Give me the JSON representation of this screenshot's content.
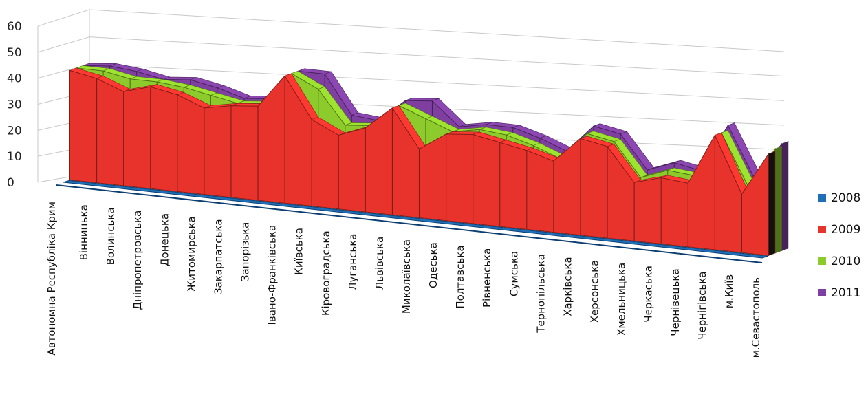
{
  "chart_data": {
    "type": "area",
    "chart_style": "3d-area",
    "ylim": [
      0,
      60
    ],
    "yticks": [
      0,
      10,
      20,
      30,
      40,
      50,
      60
    ],
    "grid": true,
    "legend_position": "right",
    "categories": [
      "Автономна Республіка Крим",
      "Вінницька",
      "Волинська",
      "Дніпропетровська",
      "Донецька",
      "Житомирська",
      "Закарпатська",
      "Запорізька",
      "Івано-Франківська",
      "Київська",
      "Кіровоградська",
      "Луганська",
      "Львівська",
      "Миколаївська",
      "Одеська",
      "Полтавська",
      "Рівненська",
      "Сумська",
      "Тернопільська",
      "Харківська",
      "Херсонська",
      "Хмельницька",
      "Черкаська",
      "Чернівецька",
      "Чернігівська",
      "м.Київ",
      "м.Севастополь"
    ],
    "series": [
      {
        "name": "2008",
        "color": "#1F6FB7",
        "values": [
          0,
          0,
          0,
          0,
          0,
          0,
          0,
          0,
          0,
          0,
          0,
          0,
          0,
          0,
          0,
          0,
          0,
          0,
          0,
          0,
          0,
          0,
          0,
          0,
          0,
          0,
          0
        ]
      },
      {
        "name": "2009",
        "color": "#E8332C",
        "values": [
          43,
          41,
          37,
          40,
          38,
          34,
          36,
          37,
          50,
          34,
          29,
          33,
          42,
          27,
          34,
          35,
          33,
          31,
          28,
          38,
          36,
          23,
          26,
          25,
          45,
          23,
          40
        ]
      },
      {
        "name": "2010",
        "color": "#8CCB2B",
        "values": [
          43,
          43,
          41,
          41,
          40,
          38,
          36,
          37,
          50,
          45,
          32,
          33,
          42,
          38,
          34,
          36,
          35,
          32,
          28,
          39,
          37,
          24,
          28,
          27,
          45,
          25,
          41
        ]
      },
      {
        "name": "2011",
        "color": "#7E3FA0",
        "values": [
          43,
          44,
          43,
          41,
          42,
          40,
          37,
          38,
          50,
          50,
          35,
          34,
          43,
          44,
          35,
          37,
          37,
          34,
          30,
          41,
          39,
          26,
          30,
          28,
          47,
          27,
          42
        ]
      }
    ]
  }
}
